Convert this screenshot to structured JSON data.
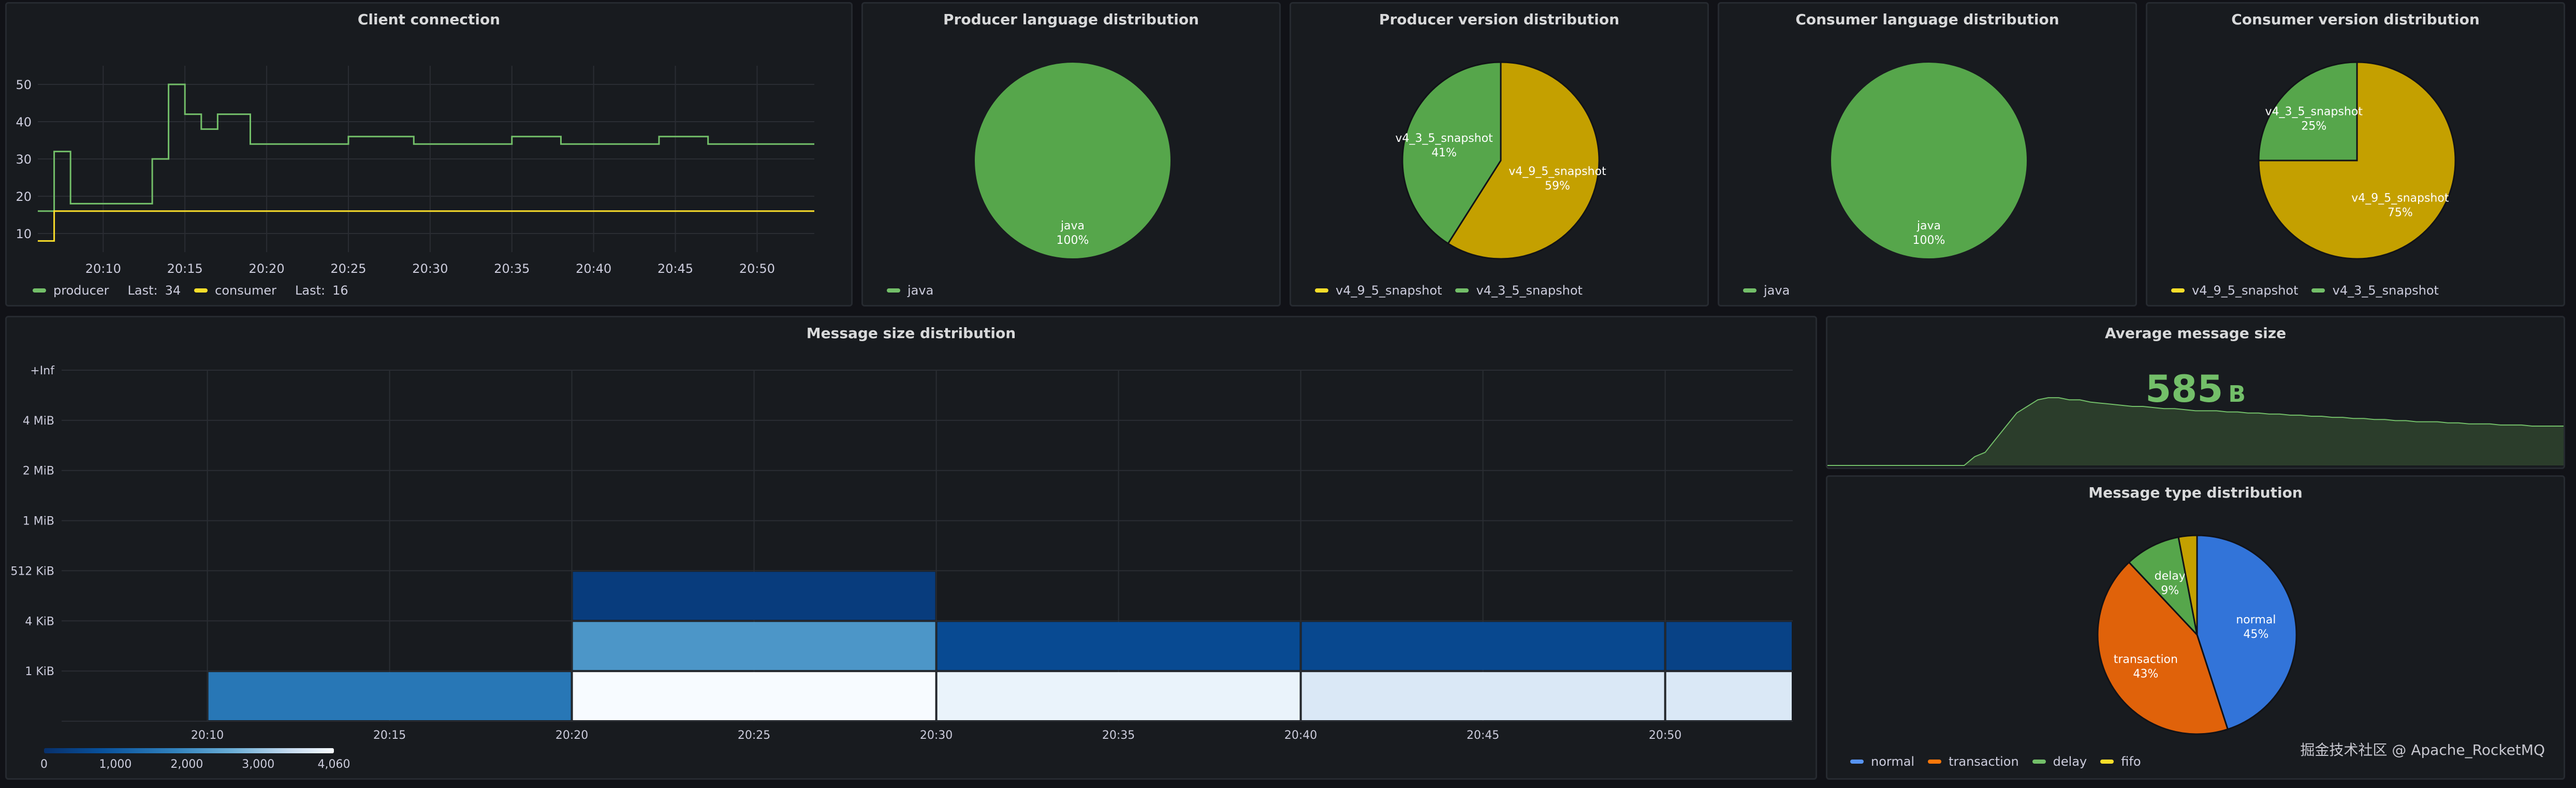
{
  "colors": {
    "green": "#73bf69",
    "yellow": "#fade2a",
    "blue": "#5794f2",
    "orange": "#ff780a",
    "pie_green": "#56a64b",
    "pie_yellow": "#c4a000",
    "pie_blue": "#3274d9",
    "pie_orange": "#e0620a",
    "pie_delay": "#56a64b",
    "pie_fifo": "#c4a000"
  },
  "panels": {
    "client_connection": {
      "title": "Client connection",
      "legend": [
        {
          "name": "producer",
          "last_label": "Last:",
          "last_value": "34",
          "color_key": "green"
        },
        {
          "name": "consumer",
          "last_label": "Last:",
          "last_value": "16",
          "color_key": "yellow"
        }
      ]
    },
    "producer_language": {
      "title": "Producer language distribution",
      "legend": [
        {
          "name": "java",
          "color_key": "green"
        }
      ]
    },
    "producer_version": {
      "title": "Producer version distribution",
      "legend": [
        {
          "name": "v4_9_5_snapshot",
          "color_key": "yellow"
        },
        {
          "name": "v4_3_5_snapshot",
          "color_key": "green"
        }
      ]
    },
    "consumer_language": {
      "title": "Consumer language distribution",
      "legend": [
        {
          "name": "java",
          "color_key": "green"
        }
      ]
    },
    "consumer_version": {
      "title": "Consumer version distribution",
      "legend": [
        {
          "name": "v4_9_5_snapshot",
          "color_key": "yellow"
        },
        {
          "name": "v4_3_5_snapshot",
          "color_key": "green"
        }
      ]
    },
    "message_size": {
      "title": "Message size distribution"
    },
    "average_size": {
      "title": "Average message size",
      "value": "585",
      "unit": "B"
    },
    "message_type": {
      "title": "Message type distribution",
      "legend": [
        {
          "name": "normal",
          "color_key": "blue"
        },
        {
          "name": "transaction",
          "color_key": "orange"
        },
        {
          "name": "delay",
          "color_key": "green"
        },
        {
          "name": "fifo",
          "color_key": "yellow"
        }
      ]
    }
  },
  "watermark": "掘金技术社区 @ Apache_RocketMQ",
  "chart_data": [
    {
      "id": "client_connection",
      "type": "line",
      "title": "Client connection",
      "x_tick_labels": [
        "20:10",
        "20:15",
        "20:20",
        "20:25",
        "20:30",
        "20:35",
        "20:40",
        "20:45",
        "20:50"
      ],
      "x_range_minutes": [
        6,
        53.5
      ],
      "y_tick_labels": [
        "10",
        "20",
        "30",
        "40",
        "50"
      ],
      "ylim": [
        5,
        55
      ],
      "series": [
        {
          "name": "producer",
          "color_key": "green",
          "points": [
            [
              6,
              16
            ],
            [
              7,
              16
            ],
            [
              7,
              32
            ],
            [
              8,
              32
            ],
            [
              8,
              18
            ],
            [
              13,
              18
            ],
            [
              13,
              30
            ],
            [
              14,
              30
            ],
            [
              14,
              50
            ],
            [
              15,
              50
            ],
            [
              15,
              42
            ],
            [
              16,
              42
            ],
            [
              16,
              38
            ],
            [
              17,
              38
            ],
            [
              17,
              42
            ],
            [
              19,
              42
            ],
            [
              19,
              34
            ],
            [
              25,
              34
            ],
            [
              25,
              36
            ],
            [
              29,
              36
            ],
            [
              29,
              34
            ],
            [
              35,
              34
            ],
            [
              35,
              36
            ],
            [
              38,
              36
            ],
            [
              38,
              34
            ],
            [
              44,
              34
            ],
            [
              44,
              36
            ],
            [
              47,
              36
            ],
            [
              47,
              34
            ],
            [
              53.5,
              34
            ]
          ]
        },
        {
          "name": "consumer",
          "color_key": "yellow",
          "points": [
            [
              6,
              8
            ],
            [
              7,
              8
            ],
            [
              7,
              16
            ],
            [
              53.5,
              16
            ]
          ]
        }
      ]
    },
    {
      "id": "producer_language",
      "type": "pie",
      "title": "Producer language distribution",
      "slices": [
        {
          "label": "java",
          "percent_label": "100%",
          "value": 100,
          "color_key": "pie_green"
        }
      ]
    },
    {
      "id": "producer_version",
      "type": "pie",
      "title": "Producer version distribution",
      "slices": [
        {
          "label": "v4_9_5_snapshot",
          "percent_label": "59%",
          "value": 59,
          "color_key": "pie_yellow"
        },
        {
          "label": "v4_3_5_snapshot",
          "percent_label": "41%",
          "value": 41,
          "color_key": "pie_green"
        }
      ]
    },
    {
      "id": "consumer_language",
      "type": "pie",
      "title": "Consumer language distribution",
      "slices": [
        {
          "label": "java",
          "percent_label": "100%",
          "value": 100,
          "color_key": "pie_green"
        }
      ]
    },
    {
      "id": "consumer_version",
      "type": "pie",
      "title": "Consumer version distribution",
      "slices": [
        {
          "label": "v4_9_5_snapshot",
          "percent_label": "75%",
          "value": 75,
          "color_key": "pie_yellow"
        },
        {
          "label": "v4_3_5_snapshot",
          "percent_label": "25%",
          "value": 25,
          "color_key": "pie_green"
        }
      ]
    },
    {
      "id": "message_size",
      "type": "heatmap",
      "title": "Message size distribution",
      "x_tick_labels": [
        "20:10",
        "20:15",
        "20:20",
        "20:25",
        "20:30",
        "20:35",
        "20:40",
        "20:45",
        "20:50"
      ],
      "x_range_minutes": [
        6,
        53.5
      ],
      "y_buckets": [
        "1 KiB",
        "4 KiB",
        "512 KiB",
        "1 MiB",
        "2 MiB",
        "4 MiB",
        "+Inf"
      ],
      "color_scale": {
        "min": 0,
        "max": 4060,
        "tick_labels": [
          "0",
          "1,000",
          "2,000",
          "3,000",
          "4,060"
        ]
      },
      "cells": [
        {
          "x0": 10,
          "x1": 20,
          "bucket": 0,
          "value": 1600
        },
        {
          "x0": 20,
          "x1": 30,
          "bucket": 0,
          "value": 4060
        },
        {
          "x0": 20,
          "x1": 30,
          "bucket": 1,
          "value": 2200
        },
        {
          "x0": 20,
          "x1": 30,
          "bucket": 2,
          "value": 300
        },
        {
          "x0": 30,
          "x1": 40,
          "bucket": 0,
          "value": 3900
        },
        {
          "x0": 30,
          "x1": 40,
          "bucket": 1,
          "value": 650
        },
        {
          "x0": 40,
          "x1": 50,
          "bucket": 0,
          "value": 3700
        },
        {
          "x0": 40,
          "x1": 50,
          "bucket": 1,
          "value": 600
        },
        {
          "x0": 50,
          "x1": 53.5,
          "bucket": 0,
          "value": 3700
        },
        {
          "x0": 50,
          "x1": 53.5,
          "bucket": 1,
          "value": 450
        }
      ]
    },
    {
      "id": "average_size",
      "type": "area",
      "title": "Average message size",
      "y_values": [
        0,
        0,
        0,
        0,
        0,
        0,
        0,
        0,
        0,
        0,
        0,
        0,
        0,
        0,
        4,
        6,
        12,
        18,
        24,
        27,
        30,
        31,
        31,
        30,
        30,
        29,
        28.5,
        28,
        27.5,
        27,
        27,
        26.5,
        26,
        26,
        25.5,
        25,
        25,
        25,
        24.5,
        24.5,
        24,
        24,
        23.5,
        23.5,
        23,
        23,
        22.5,
        22.5,
        22,
        22,
        21.5,
        21.5,
        21,
        21,
        20.5,
        20.5,
        20,
        20,
        20,
        19.5,
        19.5,
        19,
        19,
        19,
        18.5,
        18.5,
        18.5,
        18,
        18,
        18,
        18
      ],
      "ylim": [
        0,
        45
      ]
    },
    {
      "id": "message_type",
      "type": "pie",
      "title": "Message type distribution",
      "slices": [
        {
          "label": "normal",
          "percent_label": "45%",
          "value": 45,
          "color_key": "pie_blue"
        },
        {
          "label": "transaction",
          "percent_label": "43%",
          "value": 43,
          "color_key": "pie_orange"
        },
        {
          "label": "delay",
          "percent_label": "9%",
          "value": 9,
          "color_key": "pie_delay"
        },
        {
          "label": "fifo",
          "percent_label": "",
          "value": 3,
          "color_key": "pie_fifo"
        }
      ]
    }
  ]
}
